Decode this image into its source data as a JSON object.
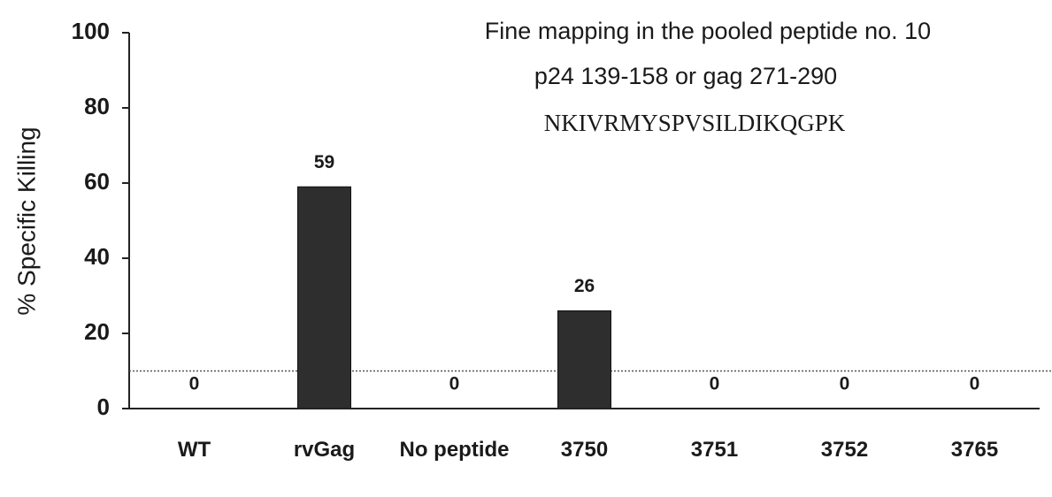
{
  "chart_data": {
    "type": "bar",
    "ylabel": "% Specific Killing",
    "annotations": [
      "Fine mapping in the pooled peptide no. 10",
      "p24  139-158 or gag 271-290",
      "NKIVRMYSPVSILDIKQGPK"
    ],
    "categories": [
      "WT",
      "rvGag",
      "No peptide",
      "3750",
      "3751",
      "3752",
      "3765"
    ],
    "values": [
      0,
      59,
      0,
      26,
      0,
      0,
      0
    ],
    "color": "#2e2e2e",
    "reference_line": 10,
    "ylim": [
      0,
      100
    ],
    "yticks": [
      0,
      20,
      40,
      60,
      80,
      100
    ]
  }
}
